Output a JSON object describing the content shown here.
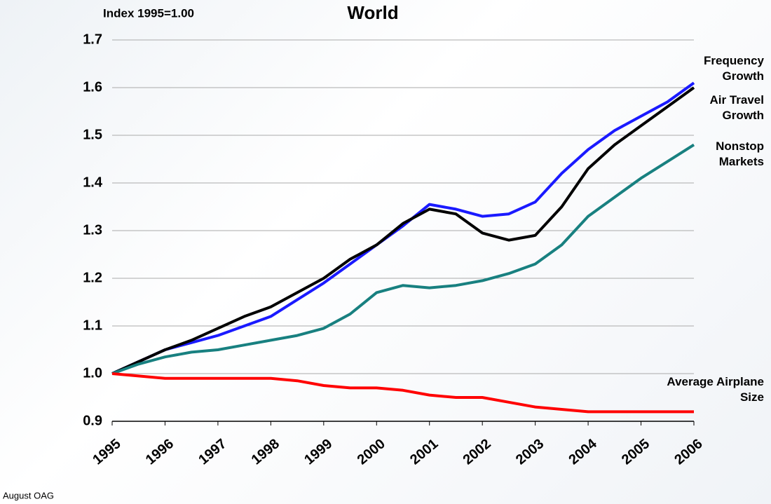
{
  "chart_data": {
    "type": "line",
    "title": "World",
    "ylabel": "Index 1995=1.00",
    "footer": "August OAG",
    "x": [
      1995,
      1995.5,
      1996,
      1996.5,
      1997,
      1997.5,
      1998,
      1998.5,
      1999,
      1999.5,
      2000,
      2000.5,
      2001,
      2001.5,
      2002,
      2002.5,
      2003,
      2003.5,
      2004,
      2004.5,
      2005,
      2005.5,
      2006
    ],
    "series": [
      {
        "name": "Frequency Growth",
        "color": "#1a1aff",
        "values": [
          1.0,
          1.025,
          1.05,
          1.065,
          1.08,
          1.1,
          1.12,
          1.155,
          1.19,
          1.23,
          1.27,
          1.31,
          1.355,
          1.345,
          1.33,
          1.335,
          1.36,
          1.42,
          1.47,
          1.51,
          1.54,
          1.57,
          1.61
        ]
      },
      {
        "name": "Air Travel Growth",
        "color": "#000000",
        "values": [
          1.0,
          1.025,
          1.05,
          1.07,
          1.095,
          1.12,
          1.14,
          1.17,
          1.2,
          1.24,
          1.27,
          1.315,
          1.345,
          1.335,
          1.295,
          1.28,
          1.29,
          1.35,
          1.43,
          1.48,
          1.52,
          1.56,
          1.6
        ]
      },
      {
        "name": "Nonstop Markets",
        "color": "#188080",
        "values": [
          1.0,
          1.02,
          1.035,
          1.045,
          1.05,
          1.06,
          1.07,
          1.08,
          1.095,
          1.125,
          1.17,
          1.185,
          1.18,
          1.185,
          1.195,
          1.21,
          1.23,
          1.27,
          1.33,
          1.37,
          1.41,
          1.445,
          1.48
        ]
      },
      {
        "name": "Average Airplane Size",
        "color": "#ff0000",
        "values": [
          1.0,
          0.995,
          0.99,
          0.99,
          0.99,
          0.99,
          0.99,
          0.985,
          0.975,
          0.97,
          0.97,
          0.965,
          0.955,
          0.95,
          0.95,
          0.94,
          0.93,
          0.925,
          0.92,
          0.92,
          0.92,
          0.92,
          0.92
        ]
      }
    ],
    "xlim": [
      1995,
      2006
    ],
    "xticks": [
      1995,
      1996,
      1997,
      1998,
      1999,
      2000,
      2001,
      2002,
      2003,
      2004,
      2005,
      2006
    ],
    "ylim": [
      0.9,
      1.7
    ],
    "yticks": [
      0.9,
      {
        "value": 1,
        "label": "1.0"
      },
      1.1,
      1.2,
      1.3,
      1.4,
      1.5,
      1.6,
      1.7
    ],
    "grid": true
  }
}
